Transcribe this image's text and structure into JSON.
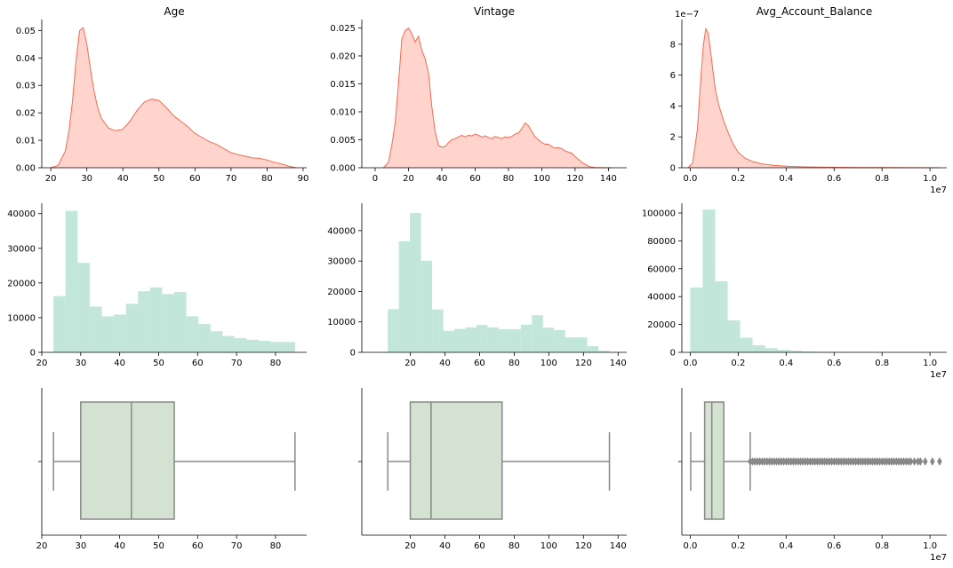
{
  "figure": {
    "colors": {
      "kde_fill": "#ffd4cc",
      "kde_line": "#f26b50",
      "hist_fill": "#c2e6da",
      "box_fill": "#d4e3d1",
      "box_line": "#888888",
      "flier": "#888888",
      "axis": "#000000"
    }
  },
  "chart_data": [
    {
      "id": "age-kde",
      "type": "area",
      "title": "Age",
      "xlim": [
        17.5,
        91
      ],
      "ylim": [
        0,
        0.054
      ],
      "xticks": [
        20,
        30,
        40,
        50,
        60,
        70,
        80,
        90
      ],
      "yticks": [
        0.0,
        0.01,
        0.02,
        0.03,
        0.04,
        0.05
      ],
      "ytick_labels": [
        "0.00",
        "0.01",
        "0.02",
        "0.03",
        "0.04",
        "0.05"
      ],
      "x": [
        20,
        22,
        24,
        25,
        26,
        27,
        28,
        29,
        30,
        31,
        32,
        33,
        34,
        36,
        38,
        40,
        42,
        44,
        46,
        48,
        50,
        52,
        54,
        56,
        58,
        60,
        62,
        64,
        66,
        68,
        70,
        72,
        74,
        76,
        78,
        80,
        82,
        84,
        86,
        88
      ],
      "y": [
        0.0,
        0.0008,
        0.006,
        0.013,
        0.024,
        0.039,
        0.05,
        0.051,
        0.045,
        0.036,
        0.028,
        0.022,
        0.018,
        0.0145,
        0.0135,
        0.014,
        0.017,
        0.021,
        0.024,
        0.025,
        0.0245,
        0.022,
        0.019,
        0.017,
        0.015,
        0.0125,
        0.011,
        0.0095,
        0.0085,
        0.007,
        0.0055,
        0.0048,
        0.0042,
        0.0036,
        0.0034,
        0.0028,
        0.002,
        0.0014,
        0.0006,
        0.0
      ]
    },
    {
      "id": "vintage-kde",
      "type": "area",
      "title": "Vintage",
      "xlim": [
        -8,
        151
      ],
      "ylim": [
        0,
        0.0265
      ],
      "xticks": [
        0,
        20,
        40,
        60,
        80,
        100,
        120,
        140
      ],
      "yticks": [
        0.0,
        0.005,
        0.01,
        0.015,
        0.02,
        0.025
      ],
      "ytick_labels": [
        "0.000",
        "0.005",
        "0.010",
        "0.015",
        "0.020",
        "0.025"
      ],
      "x": [
        5,
        8,
        10,
        12,
        14,
        16,
        18,
        20,
        22,
        24,
        26,
        28,
        30,
        32,
        34,
        36,
        38,
        40,
        42,
        44,
        46,
        48,
        50,
        52,
        54,
        56,
        58,
        60,
        62,
        64,
        66,
        68,
        70,
        72,
        74,
        76,
        78,
        80,
        82,
        84,
        86,
        88,
        90,
        92,
        94,
        96,
        98,
        100,
        102,
        104,
        106,
        108,
        110,
        112,
        114,
        116,
        118,
        120,
        122,
        124,
        126,
        128,
        130,
        132,
        135,
        138,
        142
      ],
      "y": [
        0.0,
        0.001,
        0.004,
        0.008,
        0.015,
        0.023,
        0.0245,
        0.025,
        0.024,
        0.0225,
        0.0235,
        0.021,
        0.0195,
        0.017,
        0.011,
        0.0065,
        0.004,
        0.0037,
        0.0038,
        0.0045,
        0.005,
        0.0052,
        0.0055,
        0.0058,
        0.0055,
        0.0058,
        0.0057,
        0.006,
        0.0058,
        0.0055,
        0.0057,
        0.0054,
        0.0052,
        0.0056,
        0.0054,
        0.0052,
        0.0055,
        0.0054,
        0.0056,
        0.006,
        0.0062,
        0.007,
        0.008,
        0.0075,
        0.0065,
        0.0055,
        0.005,
        0.0045,
        0.0042,
        0.0042,
        0.0038,
        0.0035,
        0.0036,
        0.0034,
        0.003,
        0.0028,
        0.0026,
        0.002,
        0.0015,
        0.001,
        0.0006,
        0.0003,
        0.0001,
        4e-05,
        1e-05,
        3e-06,
        0.0
      ]
    },
    {
      "id": "balance-kde",
      "type": "area",
      "title": "Avg_Account_Balance",
      "xlim": [
        -0.35,
        10.7
      ],
      "ylim": [
        0,
        9.6
      ],
      "x_offset_label": "1e7",
      "y_offset_label": "1e−7",
      "xticks": [
        0.0,
        0.2,
        0.4,
        0.6,
        0.8,
        1.0
      ],
      "xtick_labels": [
        "0.0",
        "0.2",
        "0.4",
        "0.6",
        "0.8",
        "1.0"
      ],
      "xtick_positions": [
        0,
        2,
        4,
        6,
        8,
        10
      ],
      "yticks": [
        0,
        2,
        4,
        6,
        8
      ],
      "ytick_labels": [
        "0",
        "2",
        "4",
        "6",
        "8"
      ],
      "x": [
        -0.1,
        0.1,
        0.3,
        0.45,
        0.55,
        0.65,
        0.75,
        0.85,
        0.95,
        1.05,
        1.2,
        1.4,
        1.6,
        1.8,
        2.0,
        2.3,
        2.6,
        3.0,
        3.5,
        4.0,
        4.5,
        5.0,
        6.0,
        7.0,
        8.0,
        9.0,
        10.0,
        10.4
      ],
      "y": [
        0.0,
        0.3,
        2.5,
        6.0,
        8.0,
        9.0,
        8.7,
        7.5,
        6.2,
        5.0,
        4.0,
        3.0,
        2.2,
        1.5,
        1.0,
        0.6,
        0.4,
        0.25,
        0.15,
        0.1,
        0.07,
        0.05,
        0.03,
        0.02,
        0.01,
        0.005,
        0.002,
        0.0
      ]
    },
    {
      "id": "age-hist",
      "type": "bar",
      "xlim": [
        20,
        88
      ],
      "ylim": [
        0,
        43000
      ],
      "xticks": [
        20,
        30,
        40,
        50,
        60,
        70,
        80
      ],
      "yticks": [
        0,
        10000,
        20000,
        30000,
        40000
      ],
      "ytick_labels": [
        "0",
        "10000",
        "20000",
        "30000",
        "40000"
      ],
      "bin_start": 23,
      "bin_width": 3.1,
      "values": [
        16200,
        40800,
        25800,
        13200,
        10400,
        10900,
        14000,
        17600,
        18700,
        16800,
        17400,
        10400,
        8200,
        6100,
        4700,
        4100,
        3600,
        3300,
        3000,
        3000
      ]
    },
    {
      "id": "vintage-hist",
      "type": "bar",
      "xlim": [
        -8,
        145
      ],
      "ylim": [
        0,
        49000
      ],
      "xticks": [
        20,
        40,
        60,
        80,
        100,
        120,
        140
      ],
      "yticks": [
        0,
        10000,
        20000,
        30000,
        40000
      ],
      "ytick_labels": [
        "0",
        "10000",
        "20000",
        "30000",
        "40000"
      ],
      "bin_start": 7,
      "bin_width": 6.4,
      "values": [
        14200,
        36500,
        45800,
        30100,
        14100,
        7100,
        7700,
        8200,
        9000,
        8200,
        7600,
        7600,
        9100,
        12200,
        8100,
        7300,
        4900,
        4900,
        2000,
        500
      ]
    },
    {
      "id": "balance-hist",
      "type": "bar",
      "xlim": [
        -0.35,
        10.7
      ],
      "ylim": [
        0,
        107000
      ],
      "x_offset_label": "1e7",
      "xticks": [
        0.0,
        0.2,
        0.4,
        0.6,
        0.8,
        1.0
      ],
      "xtick_labels": [
        "0.0",
        "0.2",
        "0.4",
        "0.6",
        "0.8",
        "1.0"
      ],
      "xtick_positions": [
        0,
        2,
        4,
        6,
        8,
        10
      ],
      "yticks": [
        0,
        20000,
        40000,
        60000,
        80000,
        100000
      ],
      "ytick_labels": [
        "0",
        "20000",
        "40000",
        "60000",
        "80000",
        "100000"
      ],
      "bin_start": 0,
      "bin_width": 0.52,
      "values": [
        46500,
        102500,
        51000,
        23000,
        10500,
        5000,
        3000,
        1800,
        1100,
        600,
        400,
        300,
        200,
        150,
        100,
        80,
        60,
        40,
        20,
        10
      ]
    },
    {
      "id": "age-box",
      "type": "box",
      "xlim": [
        20,
        88
      ],
      "xticks": [
        20,
        30,
        40,
        50,
        60,
        70,
        80
      ],
      "whisker_low": 23,
      "q1": 30,
      "median": 43,
      "q3": 54,
      "whisker_high": 85,
      "outliers": []
    },
    {
      "id": "vintage-box",
      "type": "box",
      "xlim": [
        -8,
        145
      ],
      "xticks": [
        20,
        40,
        60,
        80,
        100,
        120,
        140
      ],
      "whisker_low": 7,
      "q1": 20,
      "median": 32,
      "q3": 73,
      "whisker_high": 135,
      "outliers": []
    },
    {
      "id": "balance-box",
      "type": "box",
      "xlim": [
        -0.35,
        10.7
      ],
      "x_offset_label": "1e7",
      "xticks": [
        0.0,
        0.2,
        0.4,
        0.6,
        0.8,
        1.0
      ],
      "xtick_labels": [
        "0.0",
        "0.2",
        "0.4",
        "0.6",
        "0.8",
        "1.0"
      ],
      "xtick_positions": [
        0,
        2,
        4,
        6,
        8,
        10
      ],
      "whisker_low": 0.02,
      "q1": 0.6,
      "median": 0.9,
      "q3": 1.4,
      "whisker_high": 2.5,
      "outliers": [
        2.5,
        2.6,
        2.7,
        2.8,
        2.9,
        3.0,
        3.1,
        3.2,
        3.3,
        3.4,
        3.5,
        3.6,
        3.7,
        3.8,
        3.9,
        4.0,
        4.1,
        4.2,
        4.3,
        4.4,
        4.5,
        4.6,
        4.7,
        4.8,
        4.9,
        5.0,
        5.1,
        5.2,
        5.3,
        5.4,
        5.5,
        5.6,
        5.7,
        5.8,
        5.9,
        6.0,
        6.1,
        6.2,
        6.3,
        6.4,
        6.5,
        6.6,
        6.7,
        6.8,
        6.9,
        7.0,
        7.1,
        7.2,
        7.3,
        7.4,
        7.5,
        7.6,
        7.7,
        7.8,
        7.9,
        8.0,
        8.1,
        8.2,
        8.3,
        8.4,
        8.5,
        8.6,
        8.7,
        8.8,
        8.9,
        9.0,
        9.1,
        9.2,
        9.35,
        9.5,
        9.6,
        9.8,
        10.1,
        10.4
      ]
    }
  ]
}
